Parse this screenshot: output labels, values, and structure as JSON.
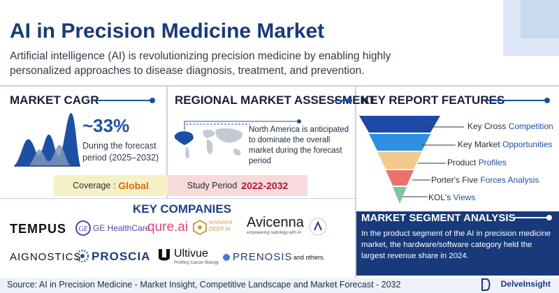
{
  "header": {
    "title": "AI in Precision Medicine Market",
    "intro": "Artificial intelligence (AI) is revolutionizing precision medicine by enabling highly personalized approaches to disease diagnosis, treatment, and prevention."
  },
  "cagr": {
    "heading": "MARKET CAGR",
    "value": "~33%",
    "caption": "During the forecast period (2025–2032)"
  },
  "regional": {
    "heading": "REGIONAL MARKET ASSESSMENT",
    "text": "North America is anticipated to dominate the overall market during the forecast period"
  },
  "coverage": {
    "label": "Coverage :",
    "value": "Global"
  },
  "study_period": {
    "label": "Study Period",
    "value": "2022-2032"
  },
  "companies": {
    "heading": "KEY COMPANIES",
    "row1": [
      "TEMPUS",
      "GE HealthCare",
      "qure.ai",
      "envisionit",
      "DEEP AI",
      "Avicenna",
      "empowering radiology with AI"
    ],
    "row2": [
      "AIGNOSTICS",
      "PROSCIA",
      "Ultivue",
      "Profiling Cancer Biology",
      "PRENOSIS",
      "and others."
    ]
  },
  "features": {
    "heading": "KEY REPORT FEATURES",
    "items": [
      {
        "a": "Key Cross ",
        "b": "Competition"
      },
      {
        "a": "Key Market ",
        "b": "Opportunities"
      },
      {
        "a": "Product ",
        "b": "Profiles"
      },
      {
        "a": "Porter's Five ",
        "b": "Forces Analysis"
      },
      {
        "a": "KOL's ",
        "b": "Views"
      }
    ],
    "colors": [
      "#1f49a8",
      "#2f8fe0",
      "#f4c98a",
      "#e9736a",
      "#7fc79a"
    ]
  },
  "segment": {
    "heading": "MARKET SEGMENT ANALYSIS",
    "text": "In the product segment of the AI in precision medicine market, the hardware/software category held the largest revenue share in 2024."
  },
  "footer": {
    "source": "Source: AI in Precision Medicine - Market Insight, Competitive Landscape and Market Forecast - 2032",
    "brand": "DelveInsight"
  }
}
